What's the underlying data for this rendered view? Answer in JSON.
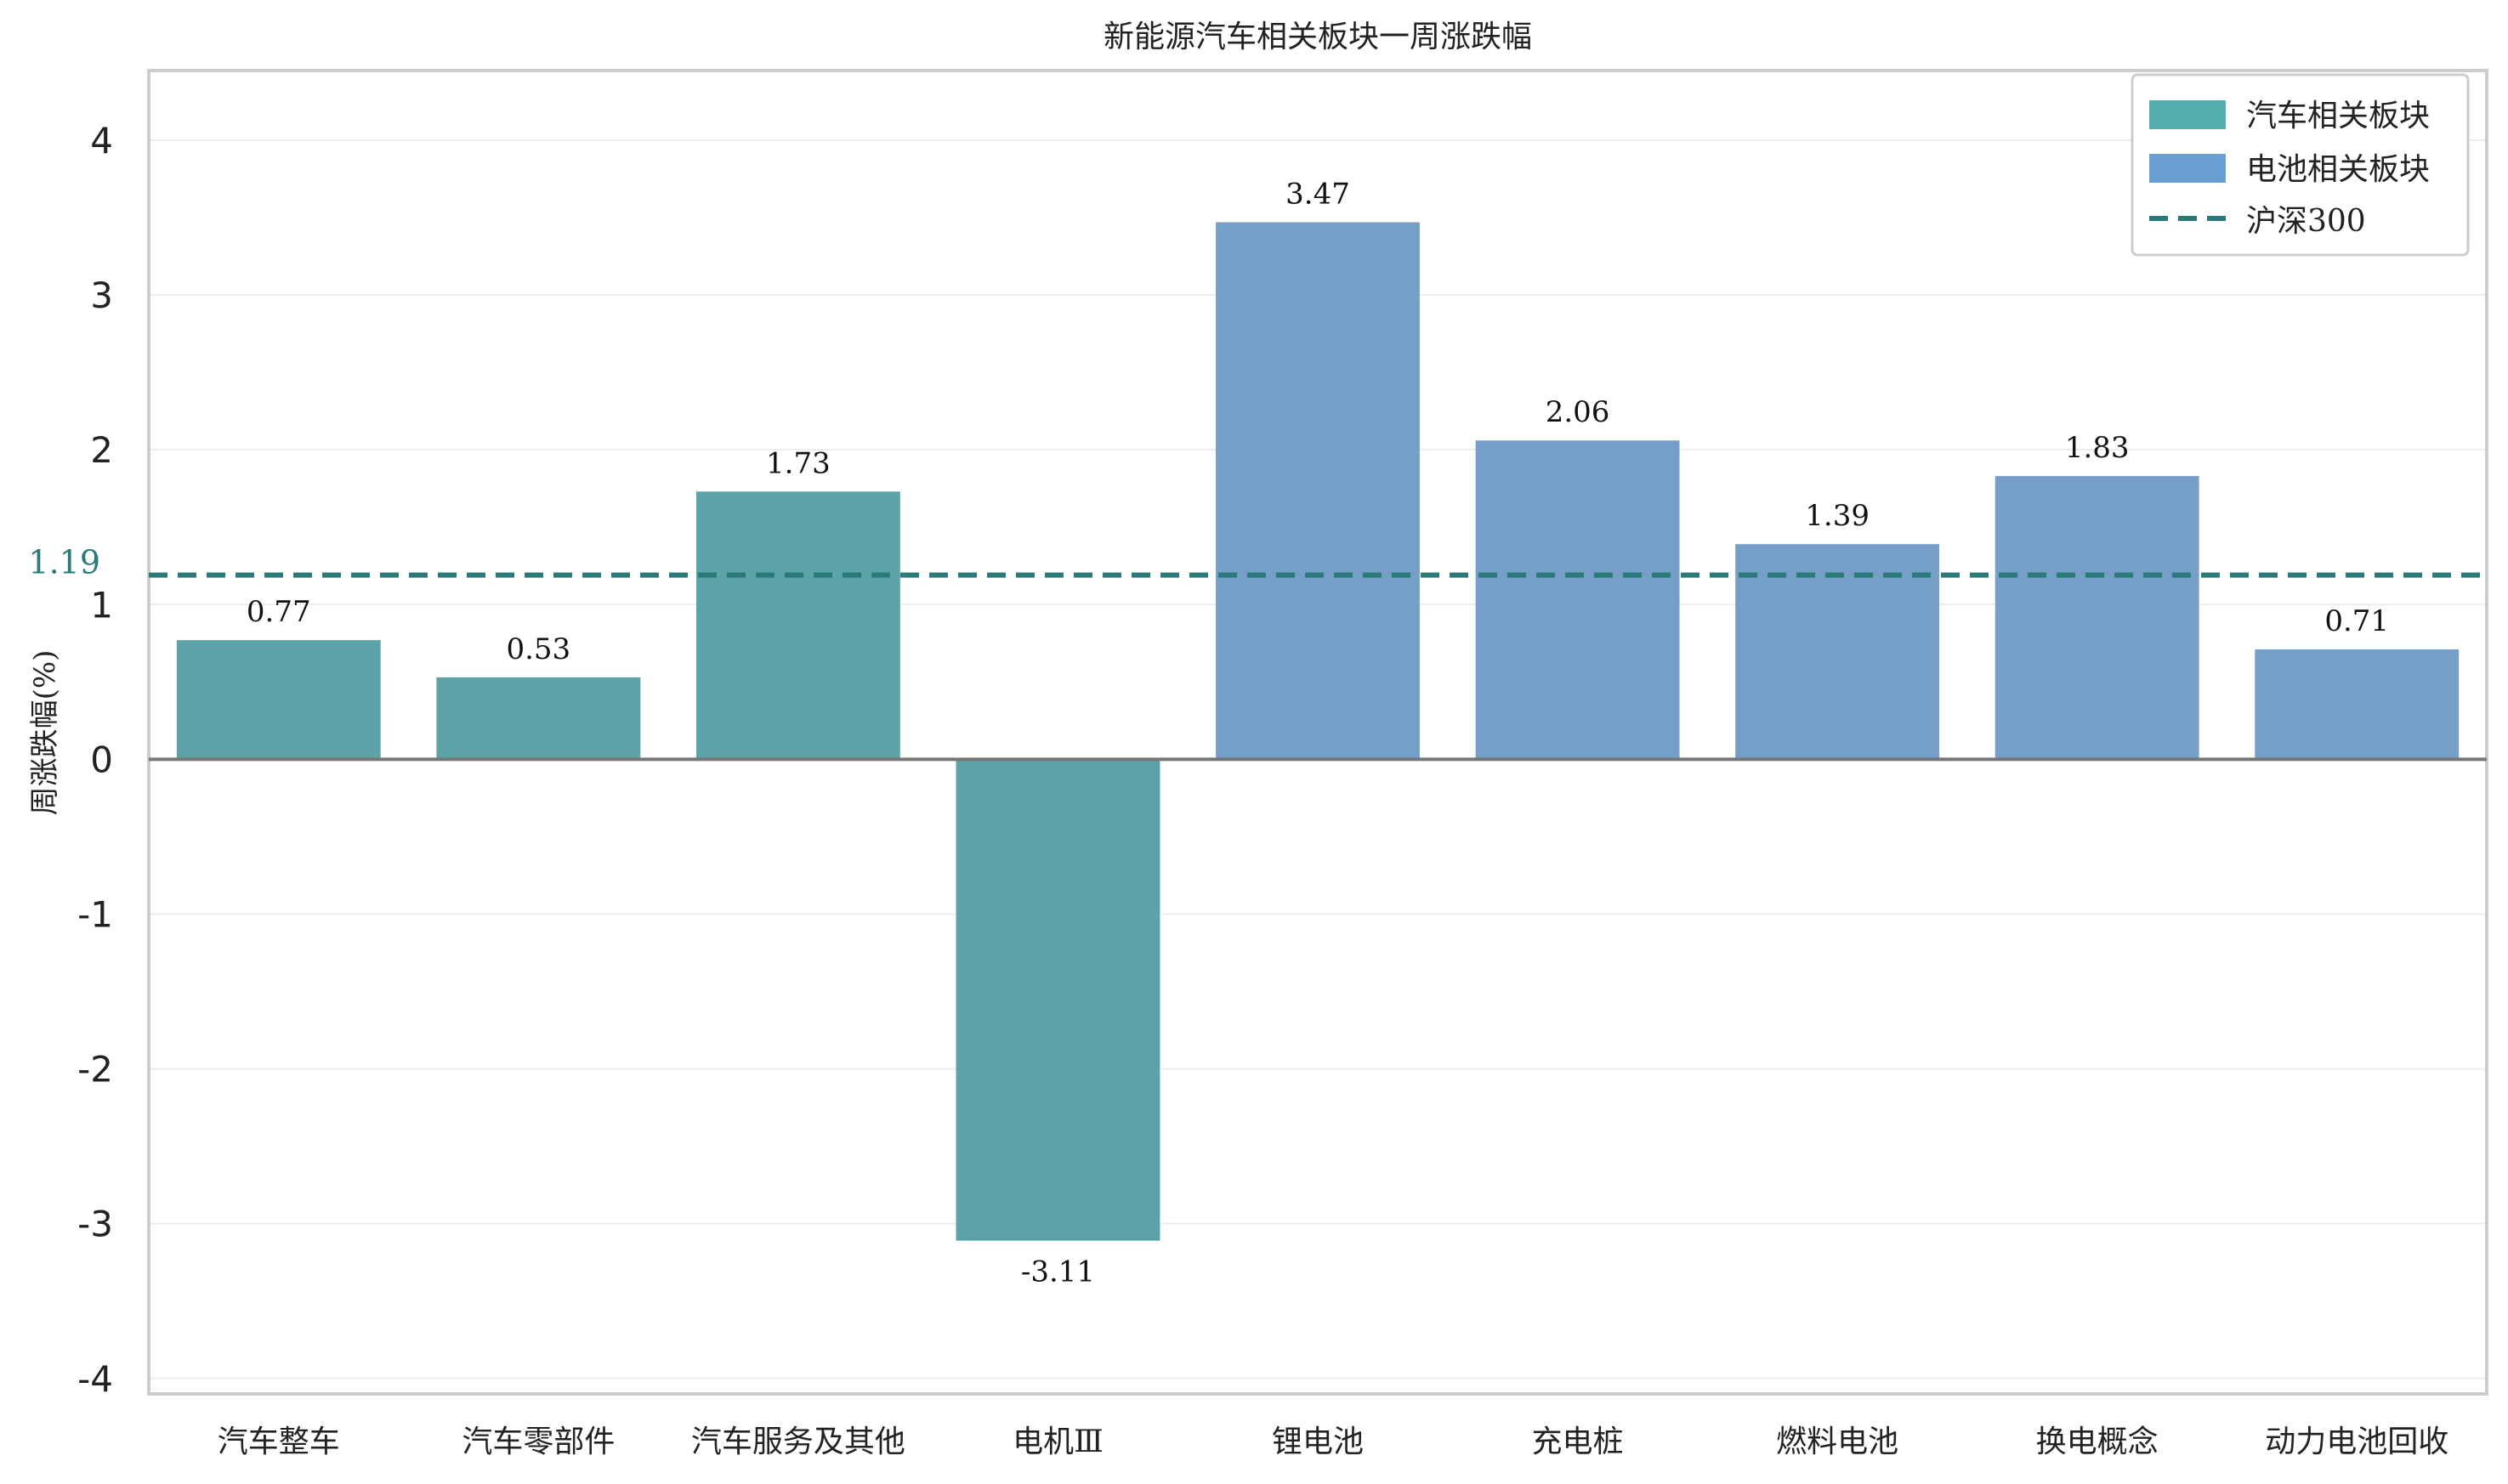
{
  "chart_data": {
    "type": "bar",
    "title": "新能源汽车相关板块一周涨跌幅",
    "ylabel": "周涨跌幅(%)",
    "xlabel": "",
    "ylim": [
      -4.1,
      4.45
    ],
    "yticks": [
      4,
      3,
      2,
      1,
      0,
      -1,
      -2,
      -3,
      -4
    ],
    "grid": true,
    "legend_position": "top-right",
    "categories": [
      "汽车整车",
      "汽车零部件",
      "汽车服务及其他",
      "电机Ⅲ",
      "锂电池",
      "充电桩",
      "燃料电池",
      "换电概念",
      "动力电池回收"
    ],
    "values": [
      0.77,
      0.53,
      1.73,
      -3.11,
      3.47,
      2.06,
      1.39,
      1.83,
      0.71
    ],
    "data_labels": [
      "0.77",
      "0.53",
      "1.73",
      "-3.11",
      "3.47",
      "2.06",
      "1.39",
      "1.83",
      "0.71"
    ],
    "groups": [
      "汽车相关板块",
      "汽车相关板块",
      "汽车相关板块",
      "汽车相关板块",
      "电池相关板块",
      "电池相关板块",
      "电池相关板块",
      "电池相关板块",
      "电池相关板块"
    ],
    "series_legend": [
      {
        "name": "汽车相关板块",
        "color": "#5ba3a6",
        "legend_color": "#52aead"
      },
      {
        "name": "电池相关板块",
        "color": "#769fc8",
        "legend_color": "#6a9fd4"
      }
    ],
    "reference_line": {
      "name": "沪深300",
      "value": 1.19,
      "label": "1.19",
      "color": "#2a7a7a"
    }
  }
}
